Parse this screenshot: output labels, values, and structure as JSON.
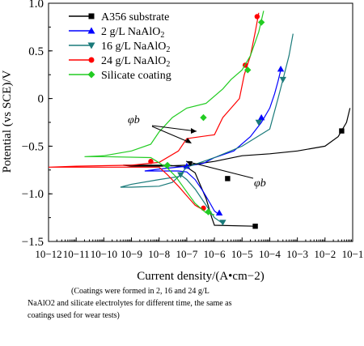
{
  "figure": {
    "caption": [
      "(Coatings were formed in 2, 16 and 24 g/L",
      "NaAlO2 and silicate electrolytes for different time, the same as",
      "coatings used for wear tests)"
    ],
    "annotations": [
      "φb",
      "φb"
    ]
  },
  "chart_data": {
    "type": "line",
    "title": "",
    "xlabel": "Current density/(A•cm−2)",
    "ylabel": "Potential (vs SCE)/V",
    "x_scale": "log",
    "xlim": [
      1e-12,
      0.1
    ],
    "ylim": [
      -1.5,
      1.0
    ],
    "x_ticks": [
      "10−12",
      "10−11",
      "10−10",
      "10−9",
      "10−8",
      "10−7",
      "10−6",
      "10−5",
      "10−4",
      "10−3",
      "10−2",
      "10−1"
    ],
    "y_ticks": [
      "−1.5",
      "−1.0",
      "−0.5",
      "0",
      "0.5",
      "1.0"
    ],
    "legend_position": "top-left",
    "series": [
      {
        "name": "A356 substrate",
        "color": "#000000",
        "marker": "square",
        "points": [
          [
            3e-05,
            -1.34
          ],
          [
            1e-06,
            -1.33
          ],
          [
            8e-07,
            -1.25
          ],
          [
            5e-07,
            -1.05
          ],
          [
            3e-07,
            -0.9
          ],
          [
            2e-07,
            -0.78
          ],
          [
            1e-07,
            -0.72
          ],
          [
            5e-08,
            -0.71
          ],
          [
            2e-08,
            -0.7
          ],
          [
            5e-09,
            -0.7
          ],
          [
            1e-09,
            -0.7
          ],
          [
            5e-10,
            -0.7
          ],
          [
            1e-09,
            -0.71
          ],
          [
            1e-08,
            -0.71
          ],
          [
            1e-07,
            -0.7
          ],
          [
            1e-06,
            -0.66
          ],
          [
            1e-05,
            -0.6
          ],
          [
            0.0001,
            -0.58
          ],
          [
            0.001,
            -0.55
          ],
          [
            0.01,
            -0.5
          ],
          [
            0.03,
            -0.4
          ],
          [
            0.06,
            -0.25
          ],
          [
            0.08,
            -0.1
          ]
        ],
        "markers": [
          [
            3e-05,
            -1.34
          ],
          [
            3e-06,
            -0.84
          ],
          [
            0.04,
            -0.34
          ]
        ]
      },
      {
        "name": "2 g/L NaAlO2",
        "color": "#0000ff",
        "marker": "triangle-up",
        "points": [
          [
            1.5e-06,
            -1.22
          ],
          [
            1e-06,
            -1.18
          ],
          [
            7e-07,
            -1.1
          ],
          [
            4e-07,
            -0.98
          ],
          [
            2e-07,
            -0.85
          ],
          [
            1e-07,
            -0.77
          ],
          [
            5e-08,
            -0.76
          ],
          [
            1e-08,
            -0.76
          ],
          [
            5e-09,
            -0.76
          ],
          [
            3e-09,
            -0.76
          ],
          [
            1e-08,
            -0.74
          ],
          [
            1e-07,
            -0.71
          ],
          [
            4e-07,
            -0.68
          ],
          [
            1e-06,
            -0.62
          ],
          [
            5e-06,
            -0.55
          ],
          [
            2e-05,
            -0.4
          ],
          [
            5e-05,
            -0.25
          ],
          [
            0.0001,
            -0.1
          ],
          [
            0.00015,
            0.05
          ],
          [
            0.0002,
            0.18
          ],
          [
            0.00025,
            0.3
          ]
        ],
        "markers": [
          [
            1.5e-06,
            -1.2
          ],
          [
            1e-07,
            -0.71
          ],
          [
            5e-05,
            -0.2
          ],
          [
            0.00025,
            0.31
          ]
        ]
      },
      {
        "name": "16 g/L NaAlO2",
        "color": "#1a7a7a",
        "marker": "triangle-down",
        "points": [
          [
            2e-06,
            -1.31
          ],
          [
            1e-06,
            -1.25
          ],
          [
            5e-07,
            -1.12
          ],
          [
            2e-07,
            -0.95
          ],
          [
            1e-07,
            -0.85
          ],
          [
            6e-08,
            -0.8
          ],
          [
            3e-08,
            -0.88
          ],
          [
            1e-08,
            -0.92
          ],
          [
            1e-09,
            -0.93
          ],
          [
            4e-10,
            -0.93
          ],
          [
            1e-09,
            -0.9
          ],
          [
            1e-08,
            -0.85
          ],
          [
            5e-08,
            -0.82
          ],
          [
            1e-07,
            -0.72
          ],
          [
            1e-06,
            -0.62
          ],
          [
            1e-05,
            -0.5
          ],
          [
            0.0001,
            -0.32
          ],
          [
            0.0002,
            0.0
          ],
          [
            0.0003,
            0.2
          ],
          [
            0.0005,
            0.45
          ],
          [
            0.0007,
            0.68
          ]
        ],
        "markers": [
          [
            2e-06,
            -1.3
          ],
          [
            6e-08,
            -0.8
          ],
          [
            4e-05,
            -0.25
          ],
          [
            0.0003,
            0.2
          ]
        ]
      },
      {
        "name": "24 g/L NaAlO2",
        "color": "#ff0000",
        "marker": "circle",
        "points": [
          [
            4e-07,
            -1.17
          ],
          [
            2e-07,
            -1.12
          ],
          [
            1e-07,
            -1.02
          ],
          [
            5e-08,
            -0.92
          ],
          [
            2e-08,
            -0.8
          ],
          [
            1e-08,
            -0.72
          ],
          [
            1e-09,
            -0.72
          ],
          [
            1e-11,
            -0.72
          ],
          [
            1e-12,
            -0.72
          ],
          [
            1e-11,
            -0.71
          ],
          [
            1e-09,
            -0.7
          ],
          [
            1e-08,
            -0.67
          ],
          [
            5e-08,
            -0.55
          ],
          [
            1e-07,
            -0.42
          ],
          [
            1e-06,
            -0.38
          ],
          [
            2e-06,
            -0.2
          ],
          [
            4e-06,
            -0.1
          ],
          [
            8e-06,
            0.0
          ],
          [
            1.2e-05,
            0.25
          ],
          [
            2e-05,
            0.45
          ],
          [
            3e-05,
            0.7
          ],
          [
            4e-05,
            0.9
          ]
        ],
        "markers": [
          [
            4e-07,
            -1.15
          ],
          [
            5e-09,
            -0.66
          ],
          [
            1.3e-05,
            0.35
          ],
          [
            3.5e-05,
            0.86
          ]
        ]
      },
      {
        "name": "Silicate coating",
        "color": "#22cc22",
        "marker": "diamond",
        "points": [
          [
            1e-06,
            -1.22
          ],
          [
            5e-07,
            -1.2
          ],
          [
            2e-07,
            -1.1
          ],
          [
            1e-07,
            -0.98
          ],
          [
            4e-08,
            -0.82
          ],
          [
            2e-08,
            -0.73
          ],
          [
            5e-09,
            -0.62
          ],
          [
            1e-10,
            -0.61
          ],
          [
            2e-11,
            -0.61
          ],
          [
            1e-10,
            -0.6
          ],
          [
            1e-09,
            -0.55
          ],
          [
            5e-09,
            -0.48
          ],
          [
            1e-08,
            -0.35
          ],
          [
            3e-08,
            -0.2
          ],
          [
            1e-07,
            -0.1
          ],
          [
            5e-07,
            -0.05
          ],
          [
            2e-06,
            0.1
          ],
          [
            4e-06,
            0.2
          ],
          [
            1e-05,
            0.3
          ],
          [
            2e-05,
            0.45
          ],
          [
            4e-05,
            0.7
          ],
          [
            6e-05,
            0.92
          ]
        ],
        "markers": [
          [
            6e-07,
            -1.19
          ],
          [
            2e-08,
            -0.7
          ],
          [
            4e-07,
            -0.2
          ],
          [
            1.6e-05,
            0.3
          ],
          [
            5e-05,
            0.8
          ]
        ]
      }
    ]
  }
}
